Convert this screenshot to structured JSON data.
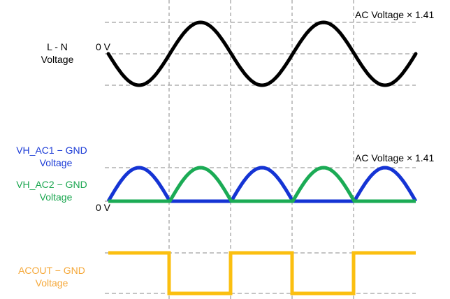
{
  "panels": {
    "ln": {
      "label_line1": "L - N",
      "label_line2": "Voltage",
      "label_color": "#000000",
      "zero_label": "0 V",
      "peak_label": "AC Voltage × 1.41",
      "waveform_color": "#000000"
    },
    "vh": {
      "label1_line1": "VH_AC1 − GND",
      "label1_line2": "Voltage",
      "label1_color": "#1a3ad6",
      "label2_line1": "VH_AC2 − GND",
      "label2_line2": "Voltage",
      "label2_color": "#1aa64f",
      "zero_label": "0 V",
      "peak_label": "AC Voltage × 1.41",
      "ac1_color": "#1534d4",
      "ac2_color": "#1bab55"
    },
    "acout": {
      "label_line1": "ACOUT − GND",
      "label_line2": "Voltage",
      "label_color": "#f5a83a",
      "waveform_color": "#fbbf10"
    }
  },
  "colors": {
    "guide": "#888888"
  }
}
